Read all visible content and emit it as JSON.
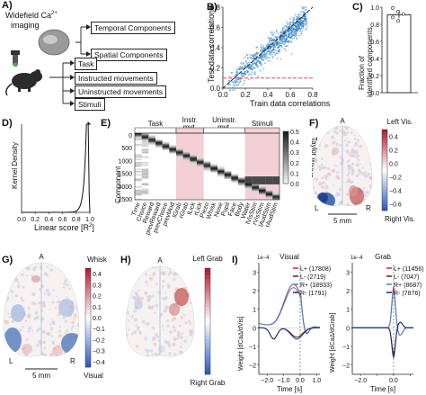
{
  "panel_labels": {
    "a": "A)",
    "b": "B)",
    "c": "C)",
    "d": "D)",
    "e": "E)",
    "f": "F)",
    "g": "G)",
    "h": "H)",
    "i": "I)"
  },
  "panel_a": {
    "imaging_line1": "Widefield Ca",
    "imaging_sup": "2+",
    "imaging_line2": "imaging",
    "top_boxes": [
      "Temporal Components",
      "Spatial Components"
    ],
    "bottom_boxes": [
      "Task",
      "Instructed movements",
      "Uninstructed movements",
      "Stimuli"
    ]
  },
  "panel_b": {
    "xlabel": "Train data correlations",
    "ylabel": "Test data correlations",
    "xticks": [
      "0.0",
      "0.2",
      "0.4",
      "0.6",
      "0.8"
    ],
    "yticks": [
      "0.0",
      "0.2",
      "0.4",
      "0.6",
      "0.8"
    ],
    "colors": {
      "points": "#2f7fc1",
      "threshold": "#e05050",
      "identity": "#222222"
    }
  },
  "panel_c": {
    "ylabel_line1": "Fraction of",
    "ylabel_line2": "identified components",
    "yticks": [
      "0.0",
      "0.2",
      "0.4",
      "0.6",
      "0.8",
      "1.0"
    ],
    "bar_value": 0.91,
    "points": [
      0.99,
      0.95,
      0.92,
      0.88,
      0.84
    ]
  },
  "panel_d": {
    "ylabel": "Kernel Density",
    "xlabel": "Linear score [R",
    "xlabel_sup": "2",
    "xlabel_end": "]",
    "xticks": [
      "0.0",
      "0.2",
      "0.4",
      "0.6",
      "0.8",
      "1.0"
    ]
  },
  "panel_e": {
    "groups": [
      "Task",
      "Instr.\nmvt.",
      "Uninstr.\nmvt.",
      "Stimuli"
    ],
    "ylabel": "Component",
    "yticks": [
      "0",
      "500",
      "1000",
      "1500",
      "2000",
      "2500"
    ],
    "regressors": [
      "Time",
      "Choice",
      "Reward",
      "prevReward",
      "prevChoice",
      "prevMod",
      "lGrab",
      "rGrab",
      "lLick",
      "rLick",
      "Piezo",
      "Whisk",
      "Nose",
      "Pupil",
      "Face",
      "Body",
      "Water",
      "lVisStim",
      "rVisStim",
      "lAudStim",
      "rAudStim"
    ],
    "colorbar_label": "Taylor Metric",
    "colorbar_ticks": [
      "0.5",
      "0.4",
      "0.3",
      "0.2",
      "0.1",
      "0.0"
    ],
    "colors": {
      "instructed_bg": "#f3d0d4",
      "stimuli_bg": "#f3d0d4"
    }
  },
  "panel_f": {
    "anterior": "A",
    "left": "L",
    "right": "R",
    "scalebar": "5 mm",
    "cbar_top": "Left Vis.",
    "cbar_bottom": "Right Vis.",
    "cbar_ticks": [
      "0.4",
      "0.2",
      "0.0",
      "−0.2",
      "−0.4",
      "−0.6"
    ]
  },
  "panel_g": {
    "anterior": "A",
    "left": "L",
    "right": "R",
    "scalebar": "5 mm",
    "cbar_top": "Whisk",
    "cbar_bottom": "Visual",
    "cbar_ticks": [
      "0.4",
      "0.3",
      "0.2",
      "0.1",
      "0.0",
      "−0.1",
      "−0.2",
      "−0.3",
      "−0.4"
    ]
  },
  "panel_h": {
    "anterior": "A",
    "cbar_top": "Left Grab",
    "cbar_bottom": "Right Grab"
  },
  "panel_i": {
    "exponent_left": "1e−4",
    "exponent_right": "1e−4",
    "title_left": "Visual",
    "title_right": "Grab",
    "ylabel_left": "Weight [dCaΔ/dVis]",
    "ylabel_right": "Weight [dCaΔ/dGrab]",
    "xlabel": "Time [s]",
    "xticks": [
      "−2.0",
      "−1.0",
      "0.0",
      "1.0"
    ],
    "yticks_left": [
      "−2",
      "−1",
      "0",
      "1",
      "2",
      "3"
    ],
    "yticks_right": [
      "−2",
      "−1",
      "0",
      "1",
      "2",
      "3"
    ],
    "legend_left": [
      "L+ (17808)",
      "L- (2719)",
      "R+ (18933)",
      "R- (1791)"
    ],
    "legend_right": [
      "L+ (11456)",
      "L- (7047)",
      "R+ (8687)",
      "R- (7876)"
    ],
    "colors": {
      "Lp": "#c03040",
      "Lm": "#6a1a20",
      "Rp": "#3a8ac8",
      "Rm": "#142e6a"
    }
  }
}
